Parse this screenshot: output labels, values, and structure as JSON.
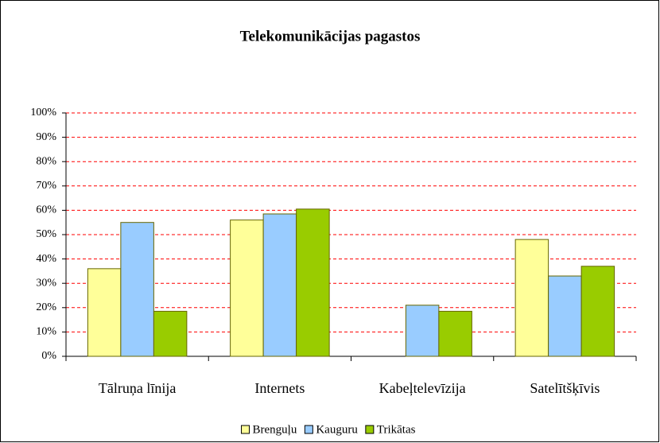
{
  "chart_data": {
    "type": "bar",
    "title": "Telekomunikācijas pagastos",
    "categories": [
      "Tālruņa līnija",
      "Internets",
      "Kabeļtelevīzija",
      "Satelītšķīvis"
    ],
    "series": [
      {
        "name": "Brenguļu",
        "color": "#ffff99",
        "values": [
          36,
          56,
          0,
          48
        ]
      },
      {
        "name": "Kauguru",
        "color": "#99ccff",
        "values": [
          55,
          58.5,
          21,
          33
        ]
      },
      {
        "name": "Trikātas",
        "color": "#99cc00",
        "values": [
          18.5,
          60.5,
          18.5,
          37
        ]
      }
    ],
    "ylim": [
      0,
      100
    ],
    "yticks": [
      {
        "value": 0,
        "label": "0%"
      },
      {
        "value": 10,
        "label": "10%"
      },
      {
        "value": 20,
        "label": "20%"
      },
      {
        "value": 30,
        "label": "30%"
      },
      {
        "value": 40,
        "label": "40%"
      },
      {
        "value": 50,
        "label": "50%"
      },
      {
        "value": 60,
        "label": "60%"
      },
      {
        "value": 70,
        "label": "70%"
      },
      {
        "value": 80,
        "label": "80%"
      },
      {
        "value": 90,
        "label": "90%"
      },
      {
        "value": 100,
        "label": "100%"
      }
    ],
    "grid": true,
    "grid_color": "#ff0000",
    "legend": "bottom"
  }
}
